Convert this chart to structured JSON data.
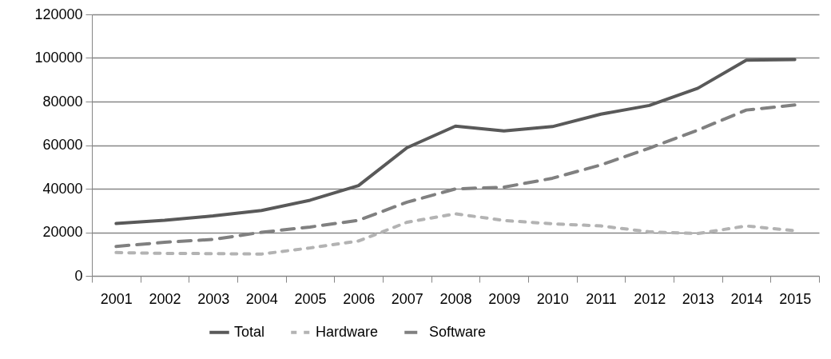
{
  "chart_data": {
    "type": "line",
    "categories": [
      "2001",
      "2002",
      "2003",
      "2004",
      "2005",
      "2006",
      "2007",
      "2008",
      "2009",
      "2010",
      "2011",
      "2012",
      "2013",
      "2014",
      "2015"
    ],
    "series": [
      {
        "name": "Total",
        "color": "#595959",
        "line_style": "solid",
        "values": [
          24000,
          25500,
          27500,
          30000,
          34700,
          41400,
          58800,
          68700,
          66500,
          68500,
          74200,
          78200,
          86100,
          99000,
          99300
        ]
      },
      {
        "name": "Hardware",
        "color": "#b3b3b3",
        "line_style": "dotted",
        "values": [
          10700,
          10300,
          10200,
          10000,
          12800,
          16000,
          24600,
          28500,
          25400,
          23900,
          22900,
          20200,
          19400,
          22900,
          20700
        ]
      },
      {
        "name": "Software",
        "color": "#808080",
        "line_style": "dashed",
        "values": [
          13500,
          15400,
          16700,
          20000,
          22400,
          25500,
          33800,
          39900,
          40700,
          44800,
          50900,
          58600,
          66900,
          76100,
          78400
        ]
      }
    ],
    "ylim": [
      0,
      120000
    ],
    "yticks": [
      0,
      20000,
      40000,
      60000,
      80000,
      100000,
      120000
    ],
    "grid": "y",
    "legend": "bottom"
  }
}
